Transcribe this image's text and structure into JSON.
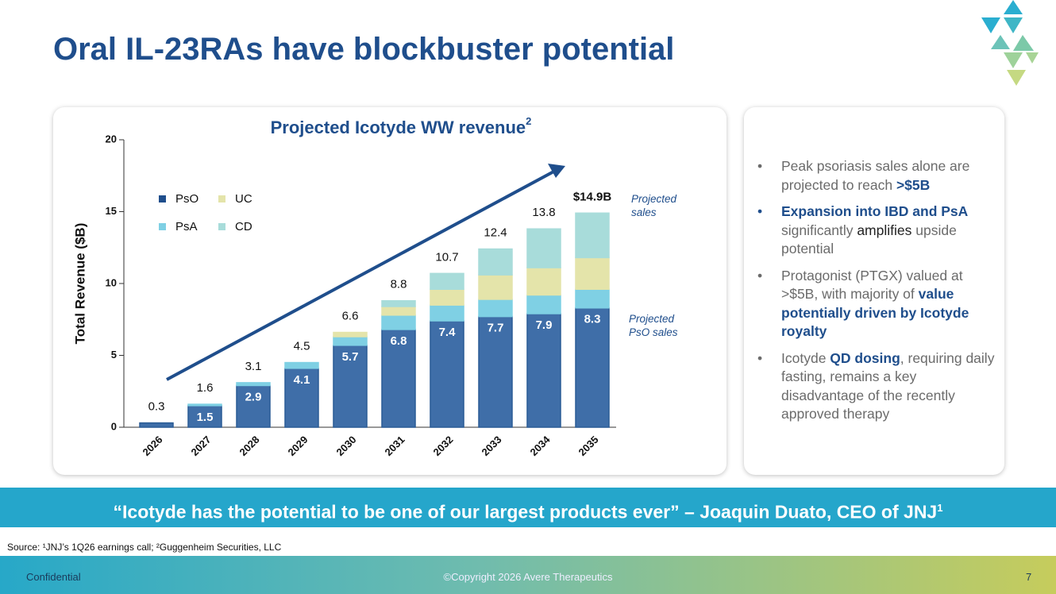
{
  "slide": {
    "title": "Oral IL-23RAs have blockbuster potential",
    "bullets": [
      {
        "segments": [
          {
            "text": "Peak psoriasis sales alone are projected to reach "
          },
          {
            "text": ">$5B",
            "style": "em"
          }
        ]
      },
      {
        "highlight": true,
        "segments": [
          {
            "text": "Expansion into IBD and PsA",
            "style": "em"
          },
          {
            "text": " significantly "
          },
          {
            "text": "amplifies",
            "style": "dark"
          },
          {
            "text": " upside potential"
          }
        ]
      },
      {
        "segments": [
          {
            "text": "Protagonist (PTGX) valued at >$5B, with majority of "
          },
          {
            "text": "value potentially driven by Icotyde royalty",
            "style": "em"
          }
        ]
      },
      {
        "segments": [
          {
            "text": "Icotyde "
          },
          {
            "text": "QD dosing",
            "style": "em"
          },
          {
            "text": ", requiring daily fasting, remains a key disadvantage of the recently approved therapy"
          }
        ]
      }
    ],
    "quote": {
      "text": "“Icotyde has the potential to be one of our largest products ever”  –  Joaquin Duato, CEO of JNJ",
      "sup": "1"
    },
    "source": "Source: ¹JNJ’s 1Q26 earnings call; ²Guggenheim Securities, LLC",
    "footer": {
      "left": "Confidential",
      "center": "©Copyright 2026 Avere Therapeutics",
      "page": 7
    }
  },
  "chart_data": {
    "type": "stacked_bar",
    "title": "Projected Icotyde WW revenue",
    "title_sup": "2",
    "y_label": "Total Revenue ($B)",
    "categories": [
      "2026",
      "2027",
      "2028",
      "2029",
      "2030",
      "2031",
      "2032",
      "2033",
      "2034",
      "2035"
    ],
    "series": [
      {
        "name": "PsO",
        "color": "#3f6ea8",
        "values": [
          0.3,
          1.5,
          2.9,
          4.1,
          5.7,
          6.8,
          7.4,
          7.7,
          7.9,
          8.3
        ],
        "value_labels": [
          null,
          "1.5",
          "2.9",
          "4.1",
          "5.7",
          "6.8",
          "7.4",
          "7.7",
          "7.9",
          "8.3"
        ]
      },
      {
        "name": "PsA",
        "color": "#7fd0e4",
        "values": [
          0,
          0.1,
          0.2,
          0.4,
          0.6,
          1.0,
          1.1,
          1.2,
          1.3,
          1.3
        ]
      },
      {
        "name": "UC",
        "color": "#e4e4aa",
        "values": [
          0,
          0,
          0,
          0,
          0.3,
          0.6,
          1.1,
          1.7,
          1.9,
          2.2
        ]
      },
      {
        "name": "CD",
        "color": "#a8dcda",
        "values": [
          0,
          0,
          0,
          0,
          0,
          0.4,
          1.1,
          1.8,
          2.7,
          3.1
        ]
      }
    ],
    "totals": {
      "values": [
        0.3,
        1.6,
        3.1,
        4.5,
        6.6,
        8.8,
        10.7,
        12.4,
        13.8,
        14.9
      ],
      "value_labels": [
        "0.3",
        "1.6",
        "3.1",
        "4.5",
        "6.6",
        "8.8",
        "10.7",
        "12.4",
        "13.8",
        "$14.9B"
      ]
    },
    "annotations": [
      "Projected sales",
      "Projected PsO sales"
    ],
    "ylim": [
      0,
      20
    ],
    "yticks": [
      0,
      5,
      10,
      15,
      20
    ],
    "grid": false
  }
}
